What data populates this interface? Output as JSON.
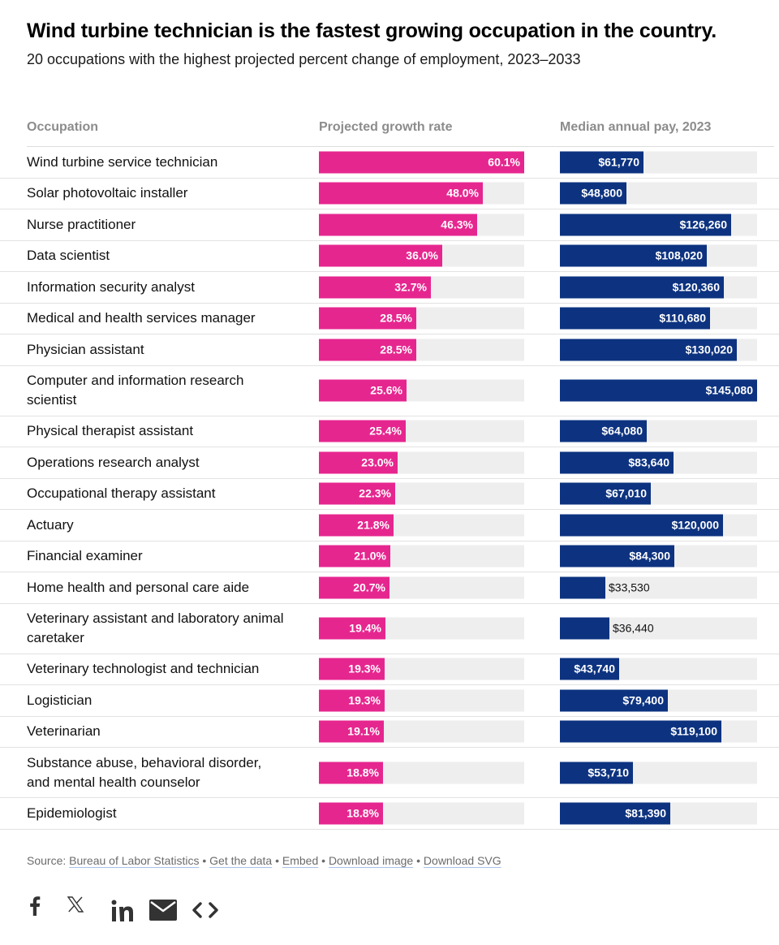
{
  "chart_data": {
    "type": "table",
    "title": "Wind turbine technician is the fastest growing occupation in the country.",
    "subtitle": "20 occupations with the highest projected percent change of employment, 2023–2033",
    "columns": [
      "Occupation",
      "Projected growth rate",
      "Median annual pay, 2023"
    ],
    "growth_max": 60.1,
    "pay_max": 145080,
    "rows": [
      {
        "occupation": "Wind turbine service technician",
        "growth": 60.1,
        "growth_label": "60.1%",
        "pay": 61770,
        "pay_label": "$61,770"
      },
      {
        "occupation": "Solar photovoltaic installer",
        "growth": 48.0,
        "growth_label": "48.0%",
        "pay": 48800,
        "pay_label": "$48,800"
      },
      {
        "occupation": "Nurse practitioner",
        "growth": 46.3,
        "growth_label": "46.3%",
        "pay": 126260,
        "pay_label": "$126,260"
      },
      {
        "occupation": "Data scientist",
        "growth": 36.0,
        "growth_label": "36.0%",
        "pay": 108020,
        "pay_label": "$108,020"
      },
      {
        "occupation": "Information security analyst",
        "growth": 32.7,
        "growth_label": "32.7%",
        "pay": 120360,
        "pay_label": "$120,360"
      },
      {
        "occupation": "Medical and health services manager",
        "growth": 28.5,
        "growth_label": "28.5%",
        "pay": 110680,
        "pay_label": "$110,680"
      },
      {
        "occupation": "Physician assistant",
        "growth": 28.5,
        "growth_label": "28.5%",
        "pay": 130020,
        "pay_label": "$130,020"
      },
      {
        "occupation": "Computer and information research scientist",
        "growth": 25.6,
        "growth_label": "25.6%",
        "pay": 145080,
        "pay_label": "$145,080"
      },
      {
        "occupation": "Physical therapist assistant",
        "growth": 25.4,
        "growth_label": "25.4%",
        "pay": 64080,
        "pay_label": "$64,080"
      },
      {
        "occupation": "Operations research analyst",
        "growth": 23.0,
        "growth_label": "23.0%",
        "pay": 83640,
        "pay_label": "$83,640"
      },
      {
        "occupation": "Occupational therapy assistant",
        "growth": 22.3,
        "growth_label": "22.3%",
        "pay": 67010,
        "pay_label": "$67,010"
      },
      {
        "occupation": "Actuary",
        "growth": 21.8,
        "growth_label": "21.8%",
        "pay": 120000,
        "pay_label": "$120,000"
      },
      {
        "occupation": "Financial examiner",
        "growth": 21.0,
        "growth_label": "21.0%",
        "pay": 84300,
        "pay_label": "$84,300"
      },
      {
        "occupation": "Home health and personal care aide",
        "growth": 20.7,
        "growth_label": "20.7%",
        "pay": 33530,
        "pay_label": "$33,530"
      },
      {
        "occupation": "Veterinary assistant and laboratory animal caretaker",
        "growth": 19.4,
        "growth_label": "19.4%",
        "pay": 36440,
        "pay_label": "$36,440"
      },
      {
        "occupation": "Veterinary technologist and technician",
        "growth": 19.3,
        "growth_label": "19.3%",
        "pay": 43740,
        "pay_label": "$43,740"
      },
      {
        "occupation": "Logistician",
        "growth": 19.3,
        "growth_label": "19.3%",
        "pay": 79400,
        "pay_label": "$79,400"
      },
      {
        "occupation": "Veterinarian",
        "growth": 19.1,
        "growth_label": "19.1%",
        "pay": 119100,
        "pay_label": "$119,100"
      },
      {
        "occupation": "Substance abuse, behavioral disorder, and mental health counselor",
        "growth": 18.8,
        "growth_label": "18.8%",
        "pay": 53710,
        "pay_label": "$53,710"
      },
      {
        "occupation": "Epidemiologist",
        "growth": 18.8,
        "growth_label": "18.8%",
        "pay": 81390,
        "pay_label": "$81,390"
      }
    ]
  },
  "colors": {
    "growth_bar": "#e6268f",
    "pay_bar": "#0d3380",
    "track": "#eeeeee"
  },
  "footer": {
    "source_prefix": "Source:",
    "links": [
      "Bureau of Labor Statistics",
      "Get the data",
      "Embed",
      "Download image",
      "Download SVG"
    ],
    "separator": "•"
  },
  "share": {
    "icons": [
      "facebook-icon",
      "x-icon",
      "linkedin-icon",
      "email-icon",
      "embed-code-icon"
    ]
  }
}
